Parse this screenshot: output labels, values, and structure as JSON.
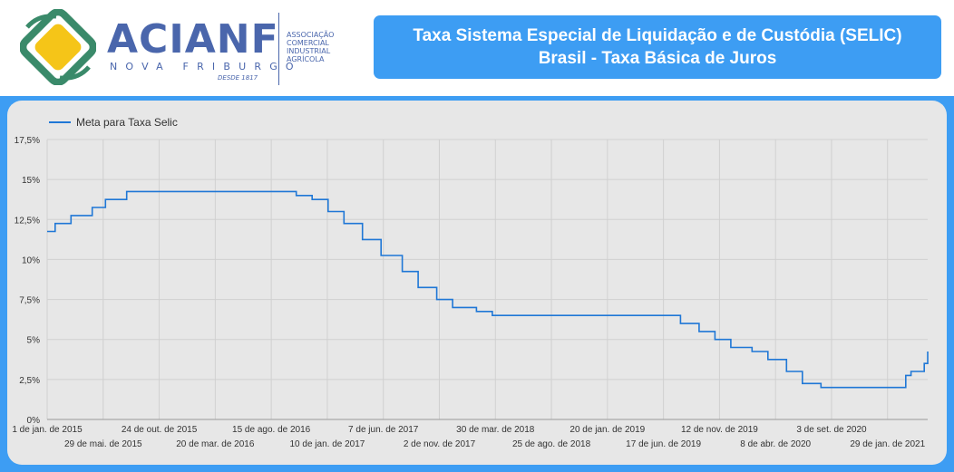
{
  "brand": {
    "name": "ACIANF",
    "city": "NOVA FRIBURGO",
    "since": "DESDE 1817",
    "association_lines": [
      "ASSOCIAÇÃO",
      "COMERCIAL",
      "INDUSTRIAL",
      "AGRÍCOLA"
    ]
  },
  "title": {
    "line1": "Taxa Sistema Especial de Liquidação e de Custódia (SELIC)",
    "line2": "Brasil - Taxa Básica de Juros"
  },
  "colors": {
    "background": "#3d9df3",
    "panel": "#e7e7e7",
    "line": "#1f77d6",
    "brand": "#4a66ac",
    "logo_green": "#3a8a6a",
    "logo_yellow": "#f5c518"
  },
  "chart_data": {
    "type": "line",
    "step": true,
    "legend_position": "top-left",
    "grid": true,
    "x_is_date": true,
    "ylim": [
      0,
      17.5
    ],
    "y_ticks": [
      {
        "value": 0,
        "label": "0%"
      },
      {
        "value": 2.5,
        "label": "2,5%"
      },
      {
        "value": 5,
        "label": "5%"
      },
      {
        "value": 7.5,
        "label": "7,5%"
      },
      {
        "value": 10,
        "label": "10%"
      },
      {
        "value": 12.5,
        "label": "12,5%"
      },
      {
        "value": 15,
        "label": "15%"
      },
      {
        "value": 17.5,
        "label": "17,5%"
      }
    ],
    "x_ticks": [
      {
        "date": "2015-01-01",
        "label": "1 de jan. de 2015",
        "row": 0
      },
      {
        "date": "2015-05-29",
        "label": "29 de mai. de 2015",
        "row": 1
      },
      {
        "date": "2015-10-24",
        "label": "24 de out. de 2015",
        "row": 0
      },
      {
        "date": "2016-03-20",
        "label": "20 de mar. de 2016",
        "row": 1
      },
      {
        "date": "2016-08-15",
        "label": "15 de ago. de 2016",
        "row": 0
      },
      {
        "date": "2017-01-10",
        "label": "10 de jan. de 2017",
        "row": 1
      },
      {
        "date": "2017-06-07",
        "label": "7 de jun. de 2017",
        "row": 0
      },
      {
        "date": "2017-11-02",
        "label": "2 de nov. de 2017",
        "row": 1
      },
      {
        "date": "2018-03-30",
        "label": "30 de mar. de 2018",
        "row": 0
      },
      {
        "date": "2018-08-25",
        "label": "25 de ago. de 2018",
        "row": 1
      },
      {
        "date": "2019-01-20",
        "label": "20 de jan. de 2019",
        "row": 0
      },
      {
        "date": "2019-06-17",
        "label": "17 de jun. de 2019",
        "row": 1
      },
      {
        "date": "2019-11-12",
        "label": "12 de nov. de 2019",
        "row": 0
      },
      {
        "date": "2020-04-08",
        "label": "8 de abr. de 2020",
        "row": 1
      },
      {
        "date": "2020-09-03",
        "label": "3 de set. de 2020",
        "row": 0
      },
      {
        "date": "2021-01-29",
        "label": "29 de jan. de 2021",
        "row": 1
      }
    ],
    "x_range": [
      "2015-01-01",
      "2021-05-15"
    ],
    "series": [
      {
        "name": "Meta para Taxa Selic",
        "points": [
          {
            "x": "2015-01-01",
            "y": 11.75
          },
          {
            "x": "2015-01-22",
            "y": 12.25
          },
          {
            "x": "2015-03-05",
            "y": 12.75
          },
          {
            "x": "2015-04-30",
            "y": 13.25
          },
          {
            "x": "2015-06-04",
            "y": 13.75
          },
          {
            "x": "2015-07-30",
            "y": 14.25
          },
          {
            "x": "2016-10-20",
            "y": 14.0
          },
          {
            "x": "2016-12-01",
            "y": 13.75
          },
          {
            "x": "2017-01-12",
            "y": 13.0
          },
          {
            "x": "2017-02-23",
            "y": 12.25
          },
          {
            "x": "2017-04-13",
            "y": 11.25
          },
          {
            "x": "2017-06-01",
            "y": 10.25
          },
          {
            "x": "2017-07-27",
            "y": 9.25
          },
          {
            "x": "2017-09-07",
            "y": 8.25
          },
          {
            "x": "2017-10-26",
            "y": 7.5
          },
          {
            "x": "2017-12-07",
            "y": 7.0
          },
          {
            "x": "2018-02-08",
            "y": 6.75
          },
          {
            "x": "2018-03-22",
            "y": 6.5
          },
          {
            "x": "2019-08-01",
            "y": 6.0
          },
          {
            "x": "2019-09-19",
            "y": 5.5
          },
          {
            "x": "2019-10-31",
            "y": 5.0
          },
          {
            "x": "2019-12-12",
            "y": 4.5
          },
          {
            "x": "2020-02-06",
            "y": 4.25
          },
          {
            "x": "2020-03-19",
            "y": 3.75
          },
          {
            "x": "2020-05-07",
            "y": 3.0
          },
          {
            "x": "2020-06-18",
            "y": 2.25
          },
          {
            "x": "2020-08-06",
            "y": 2.0
          },
          {
            "x": "2021-03-18",
            "y": 2.75
          },
          {
            "x": "2021-04-01",
            "y": 3.0
          },
          {
            "x": "2021-05-06",
            "y": 3.5
          },
          {
            "x": "2021-05-15",
            "y": 4.25
          }
        ]
      }
    ]
  }
}
